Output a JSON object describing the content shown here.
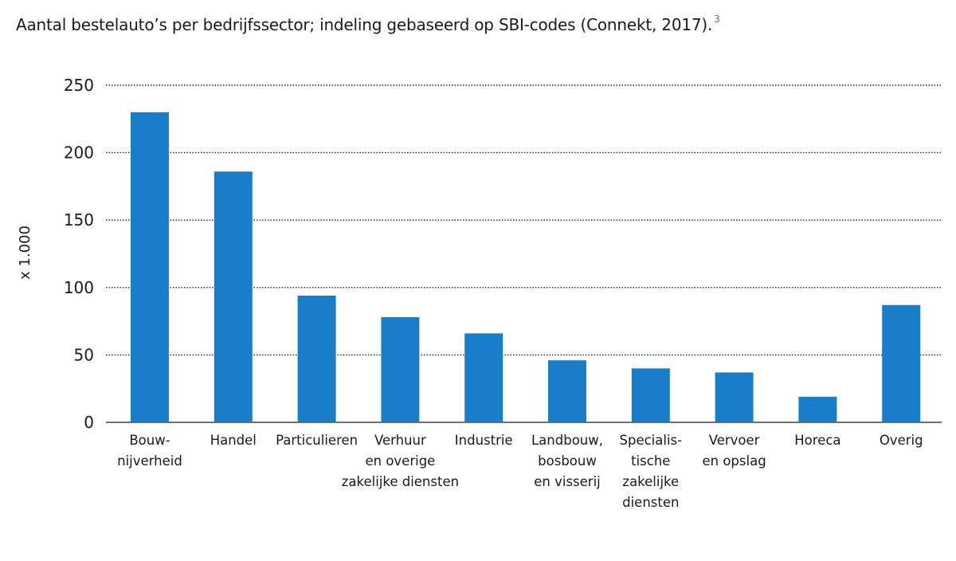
{
  "chart_data": {
    "type": "bar",
    "title": "Aantal bestelauto’s per bedrijfssector; indeling gebaseerd op SBI-codes (Connekt, 2017).",
    "title_footnote": "3",
    "ylabel": "x 1.000",
    "xlabel": "",
    "ylim": [
      0,
      250
    ],
    "yticks": [
      0,
      50,
      100,
      150,
      200,
      250
    ],
    "grid": true,
    "bar_color": "#1a7dc9",
    "footnote_color": "#1f86d6",
    "categories": [
      [
        "Bouw-",
        "nijverheid"
      ],
      [
        "Handel"
      ],
      [
        "Particulieren"
      ],
      [
        "Verhuur",
        "en overige",
        "zakelijke diensten"
      ],
      [
        "Industrie"
      ],
      [
        "Landbouw,",
        "bosbouw",
        "en visserij"
      ],
      [
        "Specialis-",
        "tische",
        "zakelijke",
        "diensten"
      ],
      [
        "Vervoer",
        "en opslag"
      ],
      [
        "Horeca"
      ],
      [
        "Overig"
      ]
    ],
    "values": [
      230,
      186,
      94,
      78,
      66,
      46,
      40,
      37,
      19,
      87
    ]
  }
}
